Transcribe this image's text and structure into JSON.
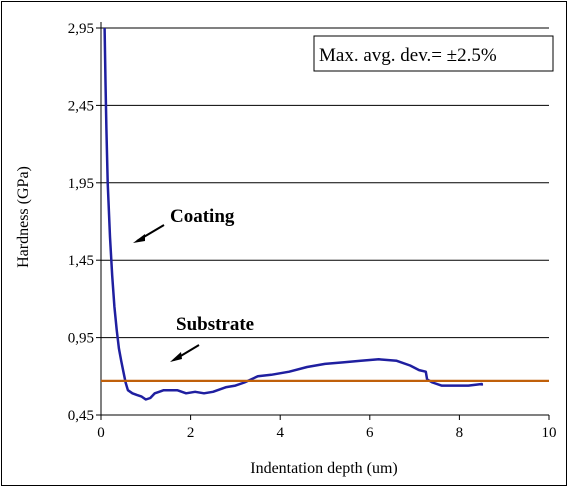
{
  "chart_data": {
    "type": "line",
    "xlabel": "Indentation depth (um)",
    "ylabel": "Hardness (GPa)",
    "xlim": [
      0,
      10
    ],
    "ylim": [
      0.45,
      2.95
    ],
    "xticks": [
      "0",
      "2",
      "4",
      "6",
      "8",
      "10"
    ],
    "yticks": [
      "0,45",
      "0,95",
      "1,45",
      "1,95",
      "2,45",
      "2,95"
    ],
    "grid": "horizontal",
    "colors": {
      "coating": "#1f1fa0",
      "substrate": "#c0600a"
    },
    "series": [
      {
        "x": [
          0.08,
          0.1,
          0.12,
          0.15,
          0.2,
          0.25,
          0.3,
          0.35,
          0.4,
          0.45,
          0.5,
          0.55,
          0.6,
          0.7,
          0.8,
          0.9,
          1.0,
          1.1,
          1.2,
          1.3,
          1.4,
          1.5,
          1.7,
          1.9,
          2.1,
          2.3,
          2.5,
          2.8,
          3.0,
          3.2,
          3.5,
          3.8,
          4.2,
          4.6,
          5.0,
          5.4,
          5.8,
          6.2,
          6.6,
          6.9,
          7.1,
          7.25,
          7.28,
          7.4,
          7.6,
          7.8,
          8.0,
          8.2,
          8.5,
          8.5
        ],
        "y": [
          2.95,
          2.6,
          2.3,
          1.95,
          1.6,
          1.35,
          1.15,
          1.0,
          0.88,
          0.8,
          0.73,
          0.66,
          0.61,
          0.59,
          0.58,
          0.57,
          0.55,
          0.56,
          0.59,
          0.6,
          0.61,
          0.61,
          0.61,
          0.59,
          0.6,
          0.59,
          0.6,
          0.63,
          0.64,
          0.66,
          0.7,
          0.71,
          0.73,
          0.76,
          0.78,
          0.79,
          0.8,
          0.81,
          0.8,
          0.77,
          0.74,
          0.73,
          0.68,
          0.66,
          0.64,
          0.64,
          0.64,
          0.64,
          0.65,
          0.64
        ]
      },
      {
        "x": [
          0,
          10
        ],
        "y": [
          0.67,
          0.67
        ]
      }
    ],
    "annotations": [
      {
        "text": "Coating",
        "arrow_to": [
          0.28,
          1.52
        ]
      },
      {
        "text": "Substrate",
        "arrow_to": [
          0.5,
          0.78
        ]
      }
    ],
    "legend_box": "Max. avg. dev.= ±2.5%"
  }
}
